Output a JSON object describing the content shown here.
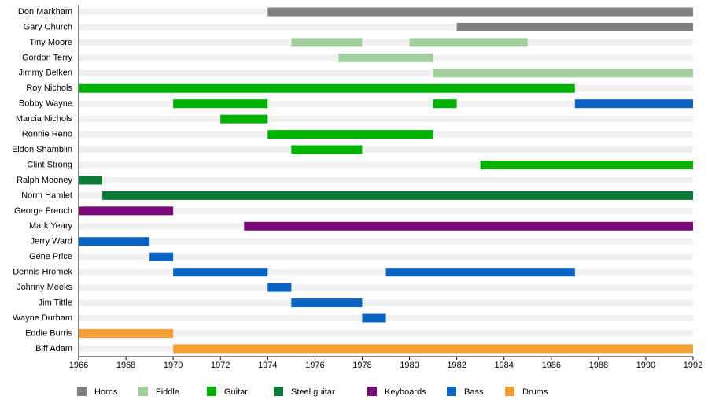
{
  "chart_data": {
    "type": "timeline",
    "categories": [
      "Don Markham",
      "Gary Church",
      "Tiny Moore",
      "Gordon Terry",
      "Jimmy Belken",
      "Roy Nichols",
      "Bobby Wayne",
      "Marcia Nichols",
      "Ronnie Reno",
      "Eldon Shamblin",
      "Clint Strong",
      "Ralph Mooney",
      "Norm Hamlet",
      "George French",
      "Mark Yeary",
      "Jerry Ward",
      "Gene Price",
      "Dennis Hromek",
      "Johnny Meeks",
      "Jim Tittle",
      "Wayne Durham",
      "Eddie Burris",
      "Biff Adam"
    ],
    "xlim": [
      1966,
      1992
    ],
    "xticks": [
      1966,
      1968,
      1970,
      1972,
      1974,
      1976,
      1978,
      1980,
      1982,
      1984,
      1986,
      1988,
      1990,
      1992
    ],
    "series": [
      {
        "name": "Horns",
        "color": "#808080",
        "values": [
          [
            [
              1974,
              1992
            ]
          ],
          [
            [
              1982,
              1992
            ]
          ],
          null,
          null,
          null,
          null,
          null,
          null,
          null,
          null,
          null,
          null,
          null,
          null,
          null,
          null,
          null,
          null,
          null,
          null,
          null,
          null,
          null
        ]
      },
      {
        "name": "Fiddle",
        "color": "#a3cf9f",
        "values": [
          null,
          null,
          [
            [
              1975,
              1978
            ],
            [
              1980,
              1985
            ]
          ],
          [
            [
              1977,
              1981
            ]
          ],
          [
            [
              1981,
              1992
            ]
          ],
          null,
          null,
          null,
          null,
          null,
          null,
          null,
          null,
          null,
          null,
          null,
          null,
          null,
          null,
          null,
          null,
          null,
          null
        ]
      },
      {
        "name": "Guitar",
        "color": "#00b300",
        "values": [
          null,
          null,
          null,
          null,
          null,
          [
            [
              1966,
              1987
            ]
          ],
          [
            [
              1970,
              1974
            ],
            [
              1981,
              1982
            ]
          ],
          [
            [
              1972,
              1974
            ]
          ],
          [
            [
              1974,
              1981
            ]
          ],
          [
            [
              1975,
              1978
            ]
          ],
          [
            [
              1983,
              1992
            ]
          ],
          null,
          null,
          null,
          null,
          null,
          null,
          null,
          null,
          null,
          null,
          null,
          null
        ]
      },
      {
        "name": "Steel guitar",
        "color": "#0a7a3a",
        "values": [
          null,
          null,
          null,
          null,
          null,
          null,
          null,
          null,
          null,
          null,
          null,
          [
            [
              1966,
              1967
            ]
          ],
          [
            [
              1967,
              1992
            ]
          ],
          null,
          null,
          null,
          null,
          null,
          null,
          null,
          null,
          null,
          null
        ]
      },
      {
        "name": "Keyboards",
        "color": "#780a7c",
        "values": [
          null,
          null,
          null,
          null,
          null,
          null,
          null,
          null,
          null,
          null,
          null,
          null,
          null,
          [
            [
              1966,
              1970
            ]
          ],
          [
            [
              1973,
              1992
            ]
          ],
          null,
          null,
          null,
          null,
          null,
          null,
          null,
          null
        ]
      },
      {
        "name": "Bass",
        "color": "#0a64c4",
        "values": [
          null,
          null,
          null,
          null,
          null,
          null,
          [
            [
              1987,
              1992
            ]
          ],
          null,
          null,
          null,
          null,
          null,
          null,
          null,
          null,
          [
            [
              1966,
              1969
            ]
          ],
          [
            [
              1969,
              1970
            ]
          ],
          [
            [
              1970,
              1974
            ],
            [
              1979,
              1987
            ]
          ],
          [
            [
              1974,
              1975
            ]
          ],
          [
            [
              1975,
              1978
            ]
          ],
          [
            [
              1978,
              1979
            ]
          ],
          null,
          null
        ]
      },
      {
        "name": "Drums",
        "color": "#f5a032",
        "values": [
          null,
          null,
          null,
          null,
          null,
          null,
          null,
          null,
          null,
          null,
          null,
          null,
          null,
          null,
          null,
          null,
          null,
          null,
          null,
          null,
          null,
          [
            [
              1966,
              1970
            ]
          ],
          [
            [
              1970,
              1992
            ]
          ]
        ]
      }
    ]
  }
}
